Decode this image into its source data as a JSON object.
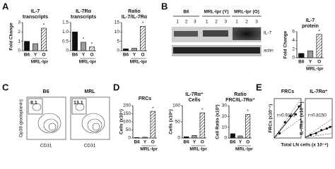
{
  "panels": {
    "letters": [
      "A",
      "B",
      "C",
      "D",
      "E"
    ],
    "blot": {
      "groups": [
        {
          "name": "B6",
          "lanes": [
            "1",
            "2",
            "3"
          ]
        },
        {
          "name": "MRL-lpr (Y)",
          "lanes": [
            "1",
            "2",
            "3"
          ]
        },
        {
          "name": "MRL-lpr (O)",
          "lanes": [
            "1",
            "2",
            "3"
          ]
        }
      ],
      "rows": [
        "IL-7",
        "actin"
      ]
    },
    "flow": {
      "plots": [
        {
          "title": "B6",
          "gate": "8.1"
        },
        {
          "title": "MRL",
          "gate": "13.1"
        }
      ],
      "ylabel": "Gp38 (podoplanin)",
      "xlabel": "CD31"
    }
  },
  "chart_data": [
    {
      "type": "bar",
      "title": [
        "IL-7",
        "transcripts"
      ],
      "ylabel": "Fold Change",
      "categories": [
        "B6",
        "Y",
        "O"
      ],
      "group_label": "MRL-lpr",
      "values": [
        1.0,
        0.75,
        2.4
      ],
      "significance": [
        null,
        null,
        "*"
      ],
      "colors": [
        "#111111",
        "#9a9a9a",
        "#ffffff"
      ],
      "hatched": [
        false,
        false,
        true
      ],
      "ylim": [
        0,
        3
      ],
      "yticks": [
        0,
        1,
        2,
        3
      ]
    },
    {
      "type": "bar",
      "title": [
        "IL-7Rα",
        "transcripts"
      ],
      "categories": [
        "B6",
        "Y",
        "O"
      ],
      "group_label": "MRL-lpr",
      "values": [
        1.0,
        0.45,
        0.2
      ],
      "significance": [
        null,
        "*",
        "*"
      ],
      "colors": [
        "#111111",
        "#9a9a9a",
        "#ffffff"
      ],
      "hatched": [
        false,
        false,
        true
      ],
      "ylim": [
        0,
        1.5
      ],
      "yticks": [
        0,
        0.5,
        {
          "value": 1,
          "label": "1.0"
        },
        1.5
      ]
    },
    {
      "type": "bar",
      "title": [
        "Ratio",
        "IL-7/IL-7Rα"
      ],
      "categories": [
        "B6",
        "Y",
        "O"
      ],
      "group_label": "MRL-lpr",
      "values": [
        1,
        1.3,
        13
      ],
      "significance": [
        null,
        null,
        "*"
      ],
      "colors": [
        "#111111",
        "#9a9a9a",
        "#ffffff"
      ],
      "hatched": [
        false,
        false,
        true
      ],
      "ylim": [
        0,
        15
      ],
      "yticks": [
        0,
        5,
        10,
        15
      ]
    },
    {
      "type": "bar",
      "title": [
        "IL-7",
        "protein"
      ],
      "ylabel": "Fold Change",
      "categories": [
        "B6",
        "Y",
        "O"
      ],
      "group_label": "MRL-lpr",
      "values": [
        1,
        1.6,
        5.4
      ],
      "significance": [
        null,
        null,
        "*"
      ],
      "colors": [
        "#111111",
        "#9a9a9a",
        "#ffffff"
      ],
      "hatched": [
        false,
        false,
        true
      ],
      "ylim": [
        0,
        6
      ],
      "yticks": [
        0,
        2,
        4,
        6
      ]
    },
    {
      "type": "bar",
      "title": [
        "FRCs"
      ],
      "ylabel": "Cells (x10⁴)",
      "categories": [
        "B6",
        "Y",
        "O"
      ],
      "group_label": "MRL-lpr",
      "values": [
        3,
        5,
        165
      ],
      "significance": [
        null,
        null,
        "*"
      ],
      "colors": [
        "#111111",
        "#9a9a9a",
        "#ffffff"
      ],
      "hatched": [
        false,
        false,
        true
      ],
      "ylim": [
        0,
        200
      ],
      "yticks": [
        0,
        50,
        100,
        150,
        200
      ]
    },
    {
      "type": "bar",
      "title": [
        "IL-7Rα⁺",
        "Cells"
      ],
      "ylabel": "Cells (x10⁶)",
      "categories": [
        "B6",
        "Y",
        "O"
      ],
      "group_label": "MRL-lpr",
      "values": [
        4,
        8,
        78
      ],
      "significance": [
        null,
        null,
        "*"
      ],
      "colors": [
        "#111111",
        "#9a9a9a",
        "#ffffff"
      ],
      "hatched": [
        false,
        false,
        true
      ],
      "ylim": [
        0,
        100
      ],
      "yticks": [
        0,
        50,
        100
      ]
    },
    {
      "type": "bar",
      "title": [
        "Ratio",
        "FRC/IL-7Rα⁺"
      ],
      "ylabel": "Cell Ratio (x10³)",
      "categories": [
        "B6",
        "Y",
        "O"
      ],
      "group_label": "MRL-lpr",
      "values": [
        4,
        2,
        22
      ],
      "significance": [
        null,
        null,
        "*"
      ],
      "colors": [
        "#111111",
        "#9a9a9a",
        "#ffffff"
      ],
      "hatched": [
        false,
        false,
        true
      ],
      "ylim": [
        0,
        30
      ],
      "yticks": [
        0,
        10,
        20,
        30
      ]
    },
    {
      "type": "scatter",
      "title": [
        "FRCs"
      ],
      "ylabel": "FRCs (x10⁻⁴)",
      "xlabel": "Total LN cells (x 10⁻⁸)",
      "x": [
        0.5,
        1.0,
        1.5,
        2.0,
        2.3
      ],
      "values": [
        0.3,
        1.0,
        1.4,
        1.5,
        2.0
      ],
      "annotation": "r=0.9161",
      "color": "#111111",
      "xlim": [
        0,
        2.5
      ],
      "ylim": [
        0,
        2.5
      ]
    },
    {
      "type": "scatter",
      "title": [
        "IL-7Rα⁺"
      ],
      "ylabel": "IL-7Rα⁺ (x10⁻⁶)",
      "x": [
        0.5,
        1.0,
        1.5,
        2.0,
        2.3
      ],
      "values": [
        0.2,
        0.3,
        0.5,
        0.6,
        0.7
      ],
      "annotation": "r=0.8150",
      "color": "#111111",
      "xlim": [
        0,
        2.5
      ],
      "ylim": [
        0,
        2.5
      ]
    }
  ]
}
